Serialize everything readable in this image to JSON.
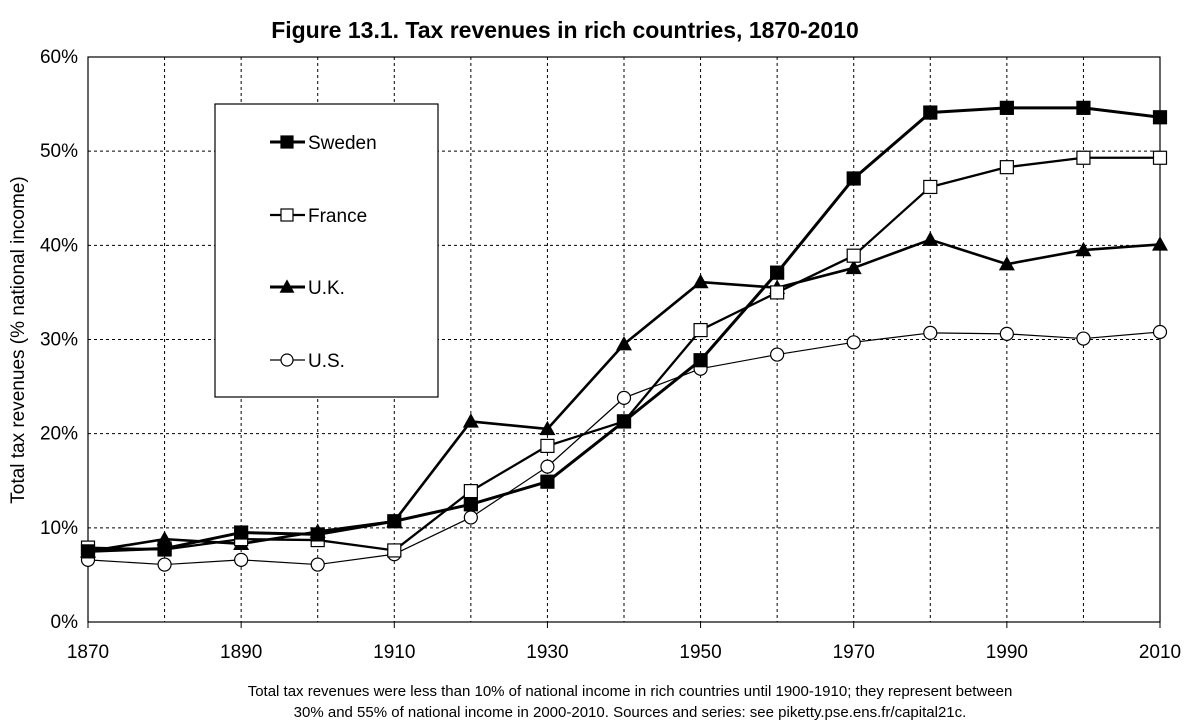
{
  "chart_data": {
    "type": "line",
    "title": "Figure 13.1. Tax revenues in rich countries, 1870-2010",
    "xlabel": "",
    "ylabel": "Total tax revenues (% national income)",
    "xlim": [
      1870,
      2010
    ],
    "ylim": [
      0,
      60
    ],
    "x_ticks": [
      "1870",
      "1890",
      "1910",
      "1930",
      "1950",
      "1970",
      "1990",
      "2010"
    ],
    "y_ticks": [
      "0%",
      "10%",
      "20%",
      "30%",
      "40%",
      "50%",
      "60%"
    ],
    "grid": true,
    "legend_position": "top-left",
    "x": [
      1870,
      1880,
      1890,
      1900,
      1910,
      1920,
      1930,
      1940,
      1950,
      1960,
      1970,
      1980,
      1990,
      2000,
      2010
    ],
    "series": [
      {
        "name": "Sweden",
        "marker": "square-filled",
        "color": "#000000",
        "values": [
          7.5,
          7.8,
          9.5,
          9.3,
          10.7,
          12.5,
          14.9,
          21.3,
          27.8,
          37.1,
          47.1,
          54.1,
          54.6,
          54.6,
          53.6
        ]
      },
      {
        "name": "France",
        "marker": "square-open",
        "color": "#000000",
        "values": [
          7.9,
          7.7,
          8.8,
          8.7,
          7.6,
          13.9,
          18.7,
          21.3,
          31.0,
          35.0,
          38.9,
          46.2,
          48.3,
          49.3,
          49.3
        ]
      },
      {
        "name": "U.K.",
        "marker": "triangle-filled",
        "color": "#000000",
        "values": [
          7.5,
          8.8,
          8.3,
          9.6,
          10.7,
          21.3,
          20.5,
          29.5,
          36.1,
          35.5,
          37.6,
          40.6,
          38.0,
          39.5,
          40.1
        ]
      },
      {
        "name": "U.S.",
        "marker": "circle-open",
        "color": "#000000",
        "values": [
          6.6,
          6.1,
          6.6,
          6.1,
          7.2,
          11.1,
          16.5,
          23.8,
          26.9,
          28.4,
          29.7,
          30.7,
          30.6,
          30.1,
          30.8
        ]
      }
    ],
    "caption": [
      "Total tax revenues were less than 10% of national income in rich countries until 1900-1910; they represent between",
      "30% and 55% of national income in 2000-2010. Sources and series: see piketty.pse.ens.fr/capital21c."
    ]
  }
}
